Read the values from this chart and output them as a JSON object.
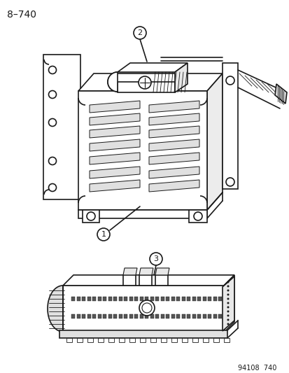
{
  "title_label": "8–740",
  "footer_label": "94108  740",
  "background_color": "#ffffff",
  "line_color": "#1a1a1a",
  "label1": "1",
  "label2": "2",
  "label3": "3",
  "figsize": [
    4.14,
    5.33
  ],
  "dpi": 100
}
